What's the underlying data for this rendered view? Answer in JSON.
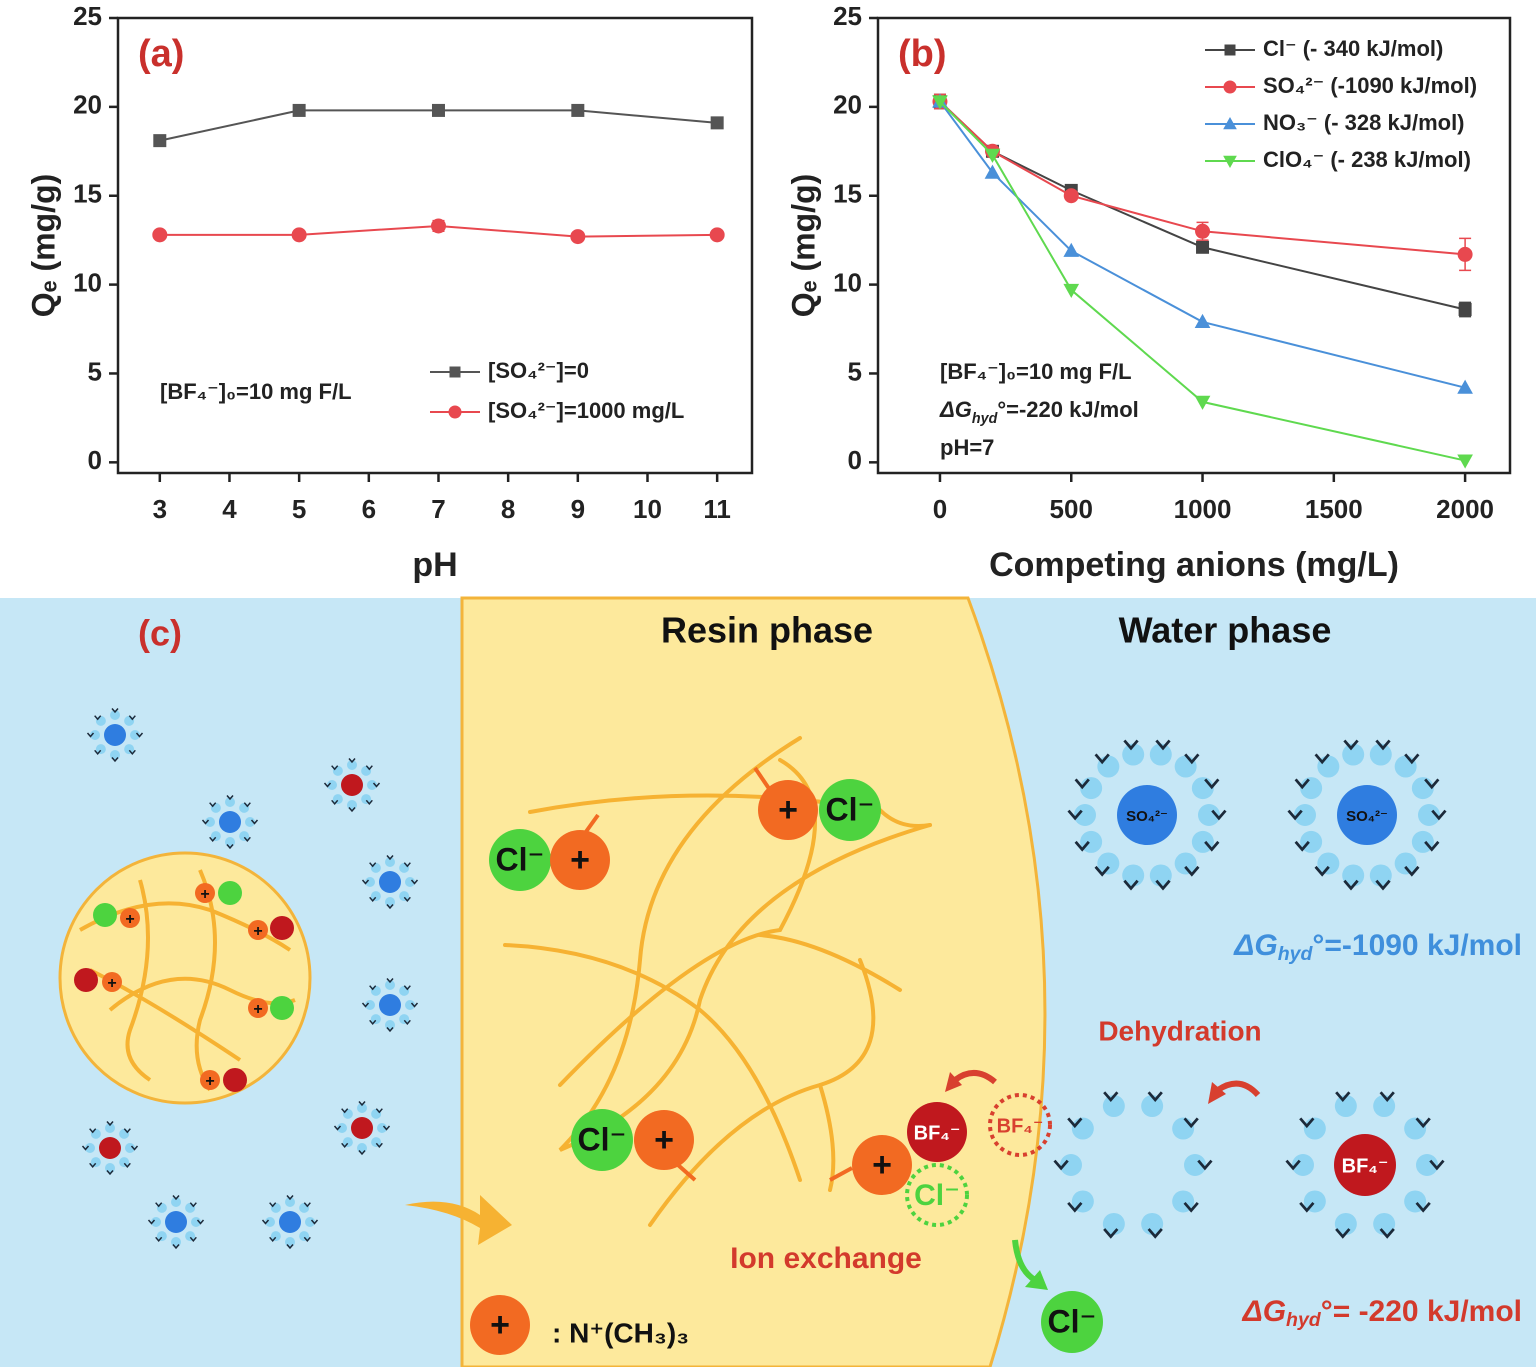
{
  "chart_data": [
    {
      "type": "line",
      "title": "(a)",
      "x_label": "pH",
      "y_label": "Qₑ (mg/g)",
      "x": [
        3,
        5,
        7,
        9,
        11
      ],
      "xlim": [
        2.4,
        11.5
      ],
      "xticks": [
        3,
        4,
        5,
        6,
        7,
        8,
        9,
        10,
        11
      ],
      "ylim": [
        -0.6,
        25
      ],
      "yticks": [
        0,
        5,
        10,
        15,
        20,
        25
      ],
      "legend": "lower right",
      "series": [
        {
          "name": "[SO₄²⁻]=0",
          "color": "#555555",
          "marker": "square",
          "values": [
            18.1,
            19.8,
            19.8,
            19.8,
            19.1
          ]
        },
        {
          "name": "[SO₄²⁻]=1000 mg/L",
          "color": "#e8484f",
          "marker": "circle",
          "values": [
            12.8,
            12.8,
            13.3,
            12.7,
            12.8
          ],
          "errors": [
            0.1,
            0.1,
            0.3,
            0.1,
            0.1
          ]
        }
      ],
      "annotations": [
        "[BF₄⁻]₀=10 mg F/L"
      ]
    },
    {
      "type": "line",
      "title": "(b)",
      "x_label": "Competing anions (mg/L)",
      "y_label": "Qₑ (mg/g)",
      "x": [
        0,
        200,
        500,
        1000,
        2000
      ],
      "xlim": [
        -236,
        2171
      ],
      "xticks": [
        0,
        500,
        1000,
        1500,
        2000
      ],
      "ylim": [
        -0.6,
        25
      ],
      "yticks": [
        0,
        5,
        10,
        15,
        20,
        25
      ],
      "legend": "upper right",
      "series": [
        {
          "name": "Cl⁻    (- 340  kJ/mol)",
          "color": "#444444",
          "marker": "square",
          "values": [
            20.3,
            17.5,
            15.3,
            12.1,
            8.6
          ],
          "errors": [
            0.4,
            0.1,
            0.1,
            0.2,
            0.4
          ]
        },
        {
          "name": "SO₄²⁻ (-1090  kJ/mol)",
          "color": "#e8484f",
          "marker": "circle",
          "values": [
            20.3,
            17.5,
            15.0,
            13.0,
            11.7
          ],
          "errors": [
            0.4,
            0.1,
            0.2,
            0.5,
            0.9
          ]
        },
        {
          "name": "NO₃⁻   (- 328  kJ/mol)",
          "color": "#4a90d9",
          "marker": "triangle-up",
          "values": [
            20.3,
            16.3,
            11.9,
            7.9,
            4.2
          ]
        },
        {
          "name": "ClO₄⁻  (- 238  kJ/mol)",
          "color": "#5fd94f",
          "marker": "triangle-down",
          "values": [
            20.3,
            17.3,
            9.7,
            3.4,
            0.1
          ]
        }
      ],
      "annotations": [
        "[BF₄⁻]₀=10 mg F/L",
        {
          "symbol": "ΔG",
          "subscript": "hyd",
          "rest": "°=-220 kJ/mol"
        },
        "pH=7"
      ]
    }
  ],
  "diagram": {
    "panel_label": "(c)",
    "resin_phase": "Resin phase",
    "water_phase": "Water phase",
    "ions": {
      "cl": "Cl⁻",
      "plus": "+",
      "bf4": "BF₄⁻",
      "so4": "SO₄²⁻"
    },
    "so4_energy": {
      "symbol": "ΔG",
      "subscript": "hyd",
      "rest": "°=-1090 kJ/mol"
    },
    "dehydration": "Dehydration",
    "ion_exchange": "Ion exchange",
    "legend_label": ": N⁺(CH₃)₃",
    "bf4_energy": {
      "symbol": "ΔG",
      "subscript": "hyd",
      "rest": "°= -220 kJ/mol"
    }
  }
}
